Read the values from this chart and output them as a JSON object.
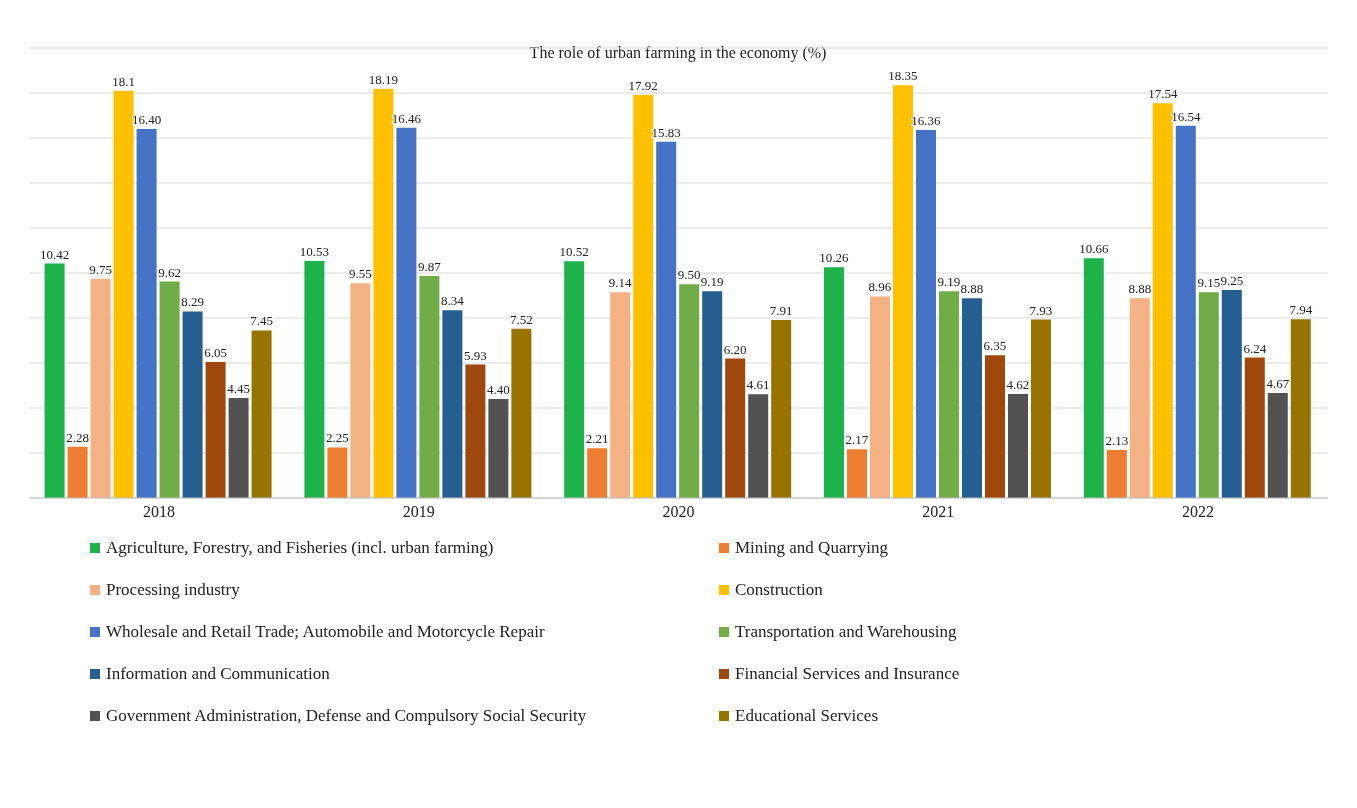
{
  "chart_data": {
    "type": "bar",
    "title": "The role of urban farming in the economy (%)",
    "categories": [
      "2018",
      "2019",
      "2020",
      "2021",
      "2022"
    ],
    "ylim": [
      0,
      20
    ],
    "yticks": [
      {
        "value": 0,
        "label": null
      },
      {
        "value": 2,
        "label": null
      },
      {
        "value": 4,
        "label": null
      },
      {
        "value": 6,
        "label": null
      },
      {
        "value": 8,
        "label": null
      },
      {
        "value": 10,
        "label": null
      },
      {
        "value": 12,
        "label": null
      },
      {
        "value": 14,
        "label": null
      },
      {
        "value": 16,
        "label": null
      },
      {
        "value": 18,
        "label": null
      },
      {
        "value": 20,
        "label": null
      }
    ],
    "tick_labels": "x",
    "grid": "y",
    "legend": "bottom",
    "series": [
      {
        "name": "Agriculture, Forestry, and Fisheries (incl. urban farming)",
        "color": "#1db34a",
        "values": [
          10.42,
          10.53,
          10.52,
          10.26,
          10.66
        ],
        "value_labels": [
          "10.42",
          "10.53",
          "10.52",
          "10.26",
          "10.66"
        ]
      },
      {
        "name": "Mining and Quarrying",
        "color": "#ed7d31",
        "values": [
          2.28,
          2.25,
          2.21,
          2.17,
          2.13
        ],
        "value_labels": [
          "2.28",
          "2.25",
          "2.21",
          "2.17",
          "2.13"
        ]
      },
      {
        "name": "Processing industry",
        "color": "#f4b183",
        "values": [
          9.75,
          9.55,
          9.14,
          8.96,
          8.88
        ],
        "value_labels": [
          "9.75",
          "9.55",
          "9.14",
          "8.96",
          "8.88"
        ]
      },
      {
        "name": "Construction",
        "color": "#ffc000",
        "values": [
          18.1,
          18.19,
          17.92,
          18.35,
          17.54
        ],
        "value_labels": [
          "18.1",
          "18.19",
          "17.92",
          "18.35",
          "17.54"
        ]
      },
      {
        "name": "Wholesale and Retail Trade; Automobile and Motorcycle Repair",
        "color": "#4472c4",
        "values": [
          16.4,
          16.46,
          15.83,
          16.36,
          16.54
        ],
        "value_labels": [
          "16.40",
          "16.46",
          "15.83",
          "16.36",
          "16.54"
        ]
      },
      {
        "name": "Transportation and Warehousing",
        "color": "#70ad47",
        "values": [
          9.62,
          9.87,
          9.5,
          9.19,
          9.15
        ],
        "value_labels": [
          "9.62",
          "9.87",
          "9.50",
          "9.19",
          "9.15"
        ]
      },
      {
        "name": "Information and Communication",
        "color": "#255e91",
        "values": [
          8.29,
          8.34,
          9.19,
          8.88,
          9.25
        ],
        "value_labels": [
          "8.29",
          "8.34",
          "9.19",
          "8.88",
          "9.25"
        ]
      },
      {
        "name": "Financial Services and Insurance",
        "color": "#9e480e",
        "values": [
          6.05,
          5.93,
          6.2,
          6.35,
          6.24
        ],
        "value_labels": [
          "6.05",
          "5.93",
          "6.20",
          "6.35",
          "6.24"
        ]
      },
      {
        "name": "Government Administration, Defense and Compulsory Social Security",
        "color": "#525252",
        "values": [
          4.45,
          4.4,
          4.61,
          4.62,
          4.67
        ],
        "value_labels": [
          "4.45",
          "4.40",
          "4.61",
          "4.62",
          "4.67"
        ]
      },
      {
        "name": "Educational Services",
        "color": "#997300",
        "values": [
          7.45,
          7.52,
          7.91,
          7.93,
          7.94
        ],
        "value_labels": [
          "7.45",
          "7.52",
          "7.91",
          "7.93",
          "7.94"
        ]
      }
    ]
  }
}
